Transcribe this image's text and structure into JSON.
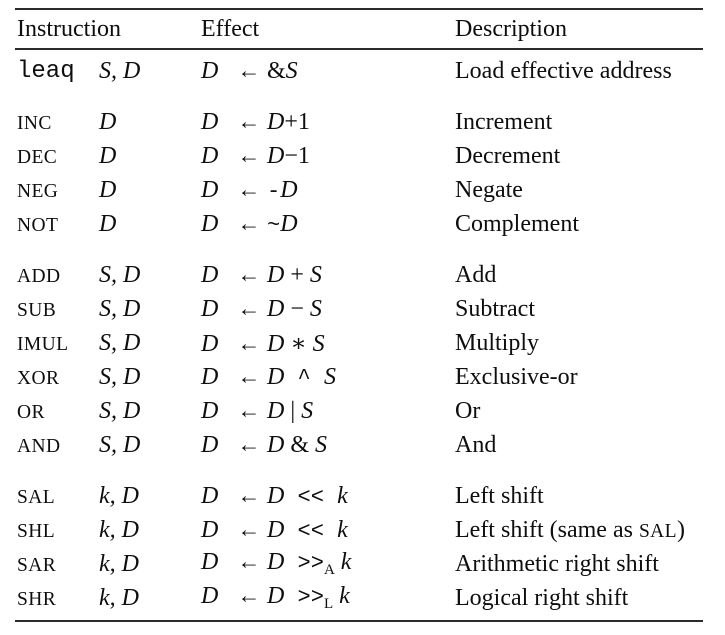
{
  "colors": {
    "background": "#ffffff",
    "text": "#0e0e0e",
    "rule": "#2b2b2b"
  },
  "header": {
    "instruction": "Instruction",
    "effect": "Effect",
    "description": "Description"
  },
  "arrow_symbol": "←",
  "groups": [
    {
      "rows": [
        {
          "m": "leaq",
          "ms": "mono",
          "ops": "S, D",
          "dest": "D",
          "expr": [
            [
              "rm",
              "&"
            ],
            [
              "it",
              "S"
            ]
          ],
          "desc": [
            [
              "rm",
              "Load effective address"
            ]
          ]
        }
      ]
    },
    {
      "rows": [
        {
          "m": "INC",
          "ms": "sc",
          "ops": "D",
          "dest": "D",
          "expr": [
            [
              "it",
              "D"
            ],
            [
              "rm",
              "+1"
            ]
          ],
          "desc": [
            [
              "rm",
              "Increment"
            ]
          ]
        },
        {
          "m": "DEC",
          "ms": "sc",
          "ops": "D",
          "dest": "D",
          "expr": [
            [
              "it",
              "D"
            ],
            [
              "rm",
              "−1"
            ]
          ],
          "desc": [
            [
              "rm",
              "Decrement"
            ]
          ]
        },
        {
          "m": "NEG",
          "ms": "sc",
          "ops": "D",
          "dest": "D",
          "expr": [
            [
              "mono",
              "-"
            ],
            [
              "it",
              "D"
            ]
          ],
          "desc": [
            [
              "rm",
              "Negate"
            ]
          ]
        },
        {
          "m": "NOT",
          "ms": "sc",
          "ops": "D",
          "dest": "D",
          "expr": [
            [
              "mono",
              "~"
            ],
            [
              "it",
              "D"
            ]
          ],
          "desc": [
            [
              "rm",
              "Complement"
            ]
          ]
        }
      ]
    },
    {
      "rows": [
        {
          "m": "ADD",
          "ms": "sc",
          "ops": "S, D",
          "dest": "D",
          "expr": [
            [
              "it",
              "D"
            ],
            [
              "rm",
              " + "
            ],
            [
              "it",
              "S"
            ]
          ],
          "desc": [
            [
              "rm",
              "Add"
            ]
          ]
        },
        {
          "m": "SUB",
          "ms": "sc",
          "ops": "S, D",
          "dest": "D",
          "expr": [
            [
              "it",
              "D"
            ],
            [
              "rm",
              " − "
            ],
            [
              "it",
              "S"
            ]
          ],
          "desc": [
            [
              "rm",
              "Subtract"
            ]
          ]
        },
        {
          "m": "IMUL",
          "ms": "sc",
          "ops": "S, D",
          "dest": "D",
          "expr": [
            [
              "it",
              "D"
            ],
            [
              "rm",
              " ∗ "
            ],
            [
              "it",
              "S"
            ]
          ],
          "desc": [
            [
              "rm",
              "Multiply"
            ]
          ]
        },
        {
          "m": "XOR",
          "ms": "sc",
          "ops": "S, D",
          "dest": "D",
          "expr": [
            [
              "it",
              "D"
            ],
            [
              "mono",
              " ^ "
            ],
            [
              "it",
              "S"
            ]
          ],
          "desc": [
            [
              "rm",
              "Exclusive-or"
            ]
          ]
        },
        {
          "m": "OR",
          "ms": "sc",
          "ops": "S, D",
          "dest": "D",
          "expr": [
            [
              "it",
              "D"
            ],
            [
              "rm",
              " | "
            ],
            [
              "it",
              "S"
            ]
          ],
          "desc": [
            [
              "rm",
              "Or"
            ]
          ]
        },
        {
          "m": "AND",
          "ms": "sc",
          "ops": "S, D",
          "dest": "D",
          "expr": [
            [
              "it",
              "D"
            ],
            [
              "rm",
              " & "
            ],
            [
              "it",
              "S"
            ]
          ],
          "desc": [
            [
              "rm",
              "And"
            ]
          ]
        }
      ]
    },
    {
      "rows": [
        {
          "m": "SAL",
          "ms": "sc",
          "ops": "k, D",
          "dest": "D",
          "expr": [
            [
              "it",
              "D"
            ],
            [
              "mono",
              " << "
            ],
            [
              "it",
              "k"
            ]
          ],
          "desc": [
            [
              "rm",
              "Left shift"
            ]
          ]
        },
        {
          "m": "SHL",
          "ms": "sc",
          "ops": "k, D",
          "dest": "D",
          "expr": [
            [
              "it",
              "D"
            ],
            [
              "mono",
              " << "
            ],
            [
              "it",
              "k"
            ]
          ],
          "desc": [
            [
              "rm",
              "Left shift (same as "
            ],
            [
              "sc",
              "SAL"
            ],
            [
              "rm",
              ")"
            ]
          ]
        },
        {
          "m": "SAR",
          "ms": "sc",
          "ops": "k, D",
          "dest": "D",
          "expr": [
            [
              "it",
              "D"
            ],
            [
              "mono",
              " >>"
            ],
            [
              "sub",
              "A"
            ],
            [
              "it",
              " k"
            ]
          ],
          "desc": [
            [
              "rm",
              "Arithmetic right shift"
            ]
          ]
        },
        {
          "m": "SHR",
          "ms": "sc",
          "ops": "k, D",
          "dest": "D",
          "expr": [
            [
              "it",
              "D"
            ],
            [
              "mono",
              " >>"
            ],
            [
              "sub",
              "L"
            ],
            [
              "it",
              " k"
            ]
          ],
          "desc": [
            [
              "rm",
              "Logical right shift"
            ]
          ]
        }
      ]
    }
  ]
}
